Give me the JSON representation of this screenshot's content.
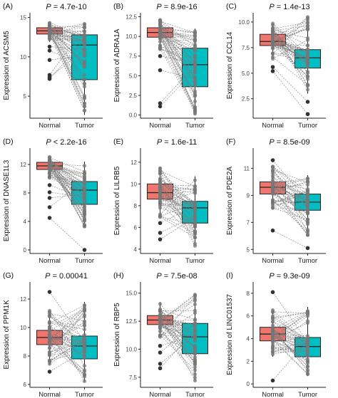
{
  "colors": {
    "normal": "#F0766D",
    "tumor": "#00BFC4",
    "points": "#777777",
    "lines": "#7a7a7a"
  },
  "chart_data": [
    {
      "type": "box",
      "panel": "(A)",
      "ylabel": "Expression of  ACSM5",
      "pvalue": "P = 4.7e-10",
      "categories": [
        "Normal",
        "Tumor"
      ],
      "ylim": [
        2.2,
        15.6
      ],
      "yticks": [
        5,
        10,
        15
      ],
      "yticklabels": [
        "5",
        "10",
        "15"
      ],
      "boxes": [
        {
          "name": "Normal",
          "q1": 12.9,
          "median": 13.3,
          "q3": 13.7,
          "whisker_low": 11.9,
          "whisker_high": 14.4,
          "outliers": [
            7.2,
            7.4,
            7.7,
            9.6,
            10.8,
            11.3
          ]
        },
        {
          "name": "Tumor",
          "q1": 7.1,
          "median": 11.5,
          "q3": 12.8,
          "whisker_low": 2.6,
          "whisker_high": 14.2,
          "outliers": []
        }
      ]
    },
    {
      "type": "box",
      "panel": "(B)",
      "ylabel": "Expression of  ADRA1A",
      "pvalue": "P = 8.9e-16",
      "categories": [
        "Normal",
        "Tumor"
      ],
      "ylim": [
        -0.4,
        13.0
      ],
      "yticks": [
        0,
        2.5,
        5,
        7.5,
        10,
        12.5
      ],
      "yticklabels": [
        "0.0",
        "2.5",
        "5.0",
        "7.5",
        "10.0",
        "12.5"
      ],
      "boxes": [
        {
          "name": "Normal",
          "q1": 9.9,
          "median": 10.5,
          "q3": 11.1,
          "whisker_low": 8.3,
          "whisker_high": 12.3,
          "outliers": [
            1.1,
            1.5,
            5.7,
            7.5
          ]
        },
        {
          "name": "Tumor",
          "q1": 3.6,
          "median": 6.4,
          "q3": 8.5,
          "whisker_low": 0.0,
          "whisker_high": 11.0,
          "outliers": []
        }
      ]
    },
    {
      "type": "box",
      "panel": "(C)",
      "ylabel": "Expression of  CCL14",
      "pvalue": "P = 1.4e-13",
      "categories": [
        "Normal",
        "Tumor"
      ],
      "ylim": [
        0.6,
        10.9
      ],
      "yticks": [
        2.5,
        5,
        7.5,
        10
      ],
      "yticklabels": [
        "2.5",
        "5.0",
        "7.5",
        "10.0"
      ],
      "boxes": [
        {
          "name": "Normal",
          "q1": 7.7,
          "median": 8.1,
          "q3": 8.8,
          "whisker_low": 6.4,
          "whisker_high": 9.9,
          "outliers": [
            5.2,
            5.6
          ]
        },
        {
          "name": "Tumor",
          "q1": 5.5,
          "median": 6.5,
          "q3": 7.3,
          "whisker_low": 3.0,
          "whisker_high": 10.5,
          "outliers": [
            1.0,
            2.2
          ]
        }
      ]
    },
    {
      "type": "box",
      "panel": "(D)",
      "ylabel": "Expression of  DNASE1L3",
      "pvalue": "P < 2.2e-16",
      "categories": [
        "Normal",
        "Tumor"
      ],
      "ylim": [
        -0.5,
        14.3
      ],
      "yticks": [
        0,
        4,
        8,
        12
      ],
      "yticklabels": [
        "0",
        "4",
        "8",
        "12"
      ],
      "boxes": [
        {
          "name": "Normal",
          "q1": 11.3,
          "median": 11.8,
          "q3": 12.3,
          "whisker_low": 10.1,
          "whisker_high": 13.2,
          "outliers": [
            4.5,
            6.0,
            7.3,
            8.1,
            9.1
          ]
        },
        {
          "name": "Tumor",
          "q1": 6.4,
          "median": 8.4,
          "q3": 9.6,
          "whisker_low": 3.2,
          "whisker_high": 12.4,
          "outliers": [
            0.0
          ]
        }
      ]
    },
    {
      "type": "box",
      "panel": "(E)",
      "ylabel": "Expression of  LILRB5",
      "pvalue": "P = 1.6e-11",
      "categories": [
        "Normal",
        "Tumor"
      ],
      "ylim": [
        3.6,
        13.3
      ],
      "yticks": [
        4,
        6,
        8,
        10,
        12
      ],
      "yticklabels": [
        "4",
        "6",
        "8",
        "10",
        "12"
      ],
      "boxes": [
        {
          "name": "Normal",
          "q1": 8.6,
          "median": 9.2,
          "q3": 10.0,
          "whisker_low": 6.9,
          "whisker_high": 11.5,
          "outliers": [
            4.9,
            5.5,
            6.4
          ]
        },
        {
          "name": "Tumor",
          "q1": 6.4,
          "median": 7.8,
          "q3": 8.4,
          "whisker_low": 4.3,
          "whisker_high": 10.7,
          "outliers": []
        }
      ]
    },
    {
      "type": "box",
      "panel": "(F)",
      "ylabel": "Expression of  PDE2A",
      "pvalue": "P = 8.5e-09",
      "categories": [
        "Normal",
        "Tumor"
      ],
      "ylim": [
        4.7,
        12.5
      ],
      "yticks": [
        5,
        7,
        9,
        11
      ],
      "yticklabels": [
        "5",
        "7",
        "9",
        "11"
      ],
      "boxes": [
        {
          "name": "Normal",
          "q1": 9.1,
          "median": 9.6,
          "q3": 10.0,
          "whisker_low": 8.0,
          "whisker_high": 11.2,
          "outliers": [
            6.4,
            11.6
          ]
        },
        {
          "name": "Tumor",
          "q1": 7.9,
          "median": 8.5,
          "q3": 9.1,
          "whisker_low": 6.0,
          "whisker_high": 10.5,
          "outliers": [
            5.1
          ]
        }
      ]
    },
    {
      "type": "box",
      "panel": "(G)",
      "ylabel": "Expression of  PPM1K",
      "pvalue": "P = 0.00041",
      "categories": [
        "Normal",
        "Tumor"
      ],
      "ylim": [
        5.8,
        13.2
      ],
      "yticks": [
        6,
        8,
        10,
        12
      ],
      "yticklabels": [
        "6",
        "8",
        "10",
        "12"
      ],
      "boxes": [
        {
          "name": "Normal",
          "q1": 8.8,
          "median": 9.3,
          "q3": 9.8,
          "whisker_low": 7.4,
          "whisker_high": 11.2,
          "outliers": [
            6.9,
            12.5
          ]
        },
        {
          "name": "Tumor",
          "q1": 7.8,
          "median": 8.7,
          "q3": 9.4,
          "whisker_low": 6.2,
          "whisker_high": 11.8,
          "outliers": []
        }
      ]
    },
    {
      "type": "box",
      "panel": "(H)",
      "ylabel": "Expression of  RBP5",
      "pvalue": "P = 7.5e-08",
      "categories": [
        "Normal",
        "Tumor"
      ],
      "ylim": [
        6.6,
        16.0
      ],
      "yticks": [
        7.5,
        10,
        12.5,
        15
      ],
      "yticklabels": [
        "7.5",
        "10.0",
        "12.5",
        "15.0"
      ],
      "boxes": [
        {
          "name": "Normal",
          "q1": 12.2,
          "median": 12.6,
          "q3": 13.0,
          "whisker_low": 11.1,
          "whisker_high": 14.2,
          "outliers": [
            8.3,
            8.7,
            9.7,
            10.3
          ]
        },
        {
          "name": "Tumor",
          "q1": 9.6,
          "median": 11.1,
          "q3": 12.3,
          "whisker_low": 7.2,
          "whisker_high": 14.9,
          "outliers": []
        }
      ]
    },
    {
      "type": "box",
      "panel": "(I)",
      "ylabel": "Expression of  LINC01537",
      "pvalue": "P = 9.3e-09",
      "categories": [
        "Normal",
        "Tumor"
      ],
      "ylim": [
        -0.3,
        9.0
      ],
      "yticks": [
        0,
        2,
        4,
        6,
        8
      ],
      "yticklabels": [
        "0",
        "2",
        "4",
        "6",
        "8"
      ],
      "boxes": [
        {
          "name": "Normal",
          "q1": 3.8,
          "median": 4.4,
          "q3": 5.0,
          "whisker_low": 2.4,
          "whisker_high": 6.6,
          "outliers": [
            0.3,
            8.1
          ]
        },
        {
          "name": "Tumor",
          "q1": 2.4,
          "median": 3.3,
          "q3": 4.1,
          "whisker_low": 0.7,
          "whisker_high": 6.8,
          "outliers": []
        }
      ]
    }
  ]
}
